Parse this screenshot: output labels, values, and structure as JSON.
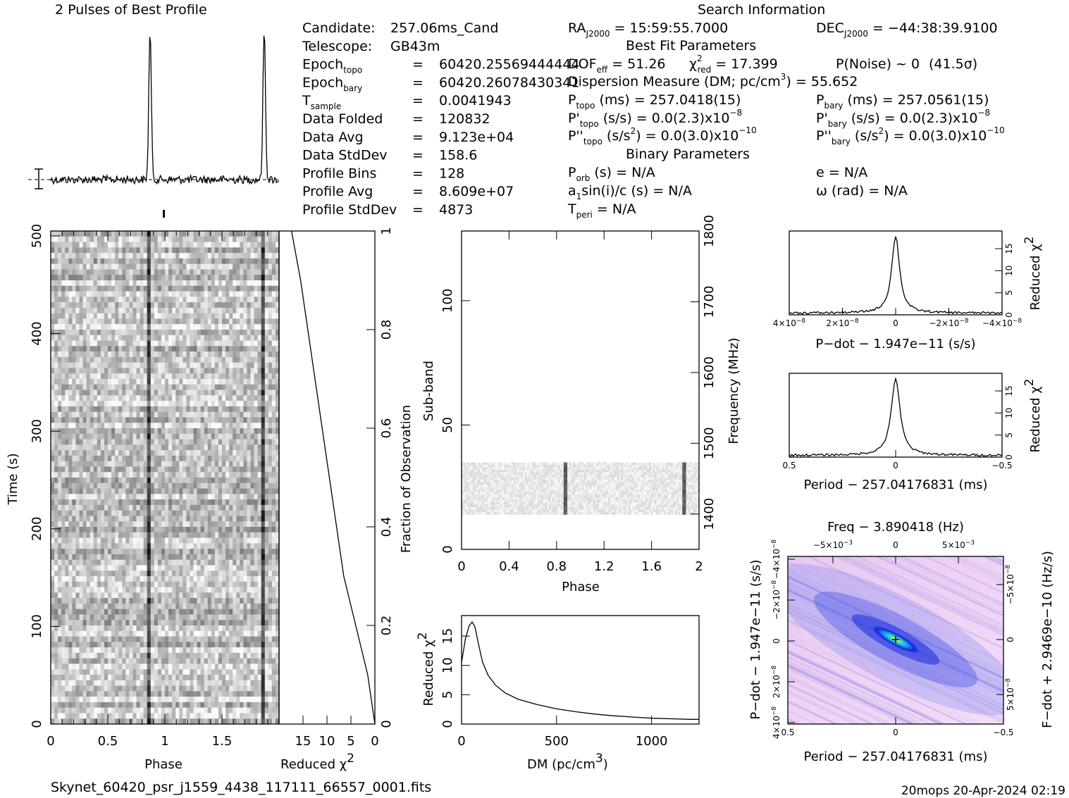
{
  "header": {
    "profile_title": "2 Pulses of Best Profile",
    "search_title": "Search Information",
    "best_fit_title": "Best Fit Parameters",
    "binary_title": "Binary Parameters",
    "footer_file": "Skynet_60420_psr_j1559_4438_117111_66557_0001.fits",
    "footer_stamp": "20mops 20-Apr-2024 02:19"
  },
  "candidate_info": [
    {
      "label": "Candidate:",
      "value": "257.06ms_Cand"
    },
    {
      "label": "Telescope:",
      "value": "GB43m"
    },
    {
      "label": "Epoch",
      "sub": "topo",
      "eq": "=",
      "value": "60420.25569444444"
    },
    {
      "label": "Epoch",
      "sub": "bary",
      "eq": "=",
      "value": "60420.26078430341"
    },
    {
      "label": "T",
      "sub": "sample",
      "eq": "=",
      "value": "0.0041943"
    },
    {
      "label": "Data Folded",
      "eq": "=",
      "value": "120832"
    },
    {
      "label": "Data Avg",
      "eq": "=",
      "value": "9.123e+04"
    },
    {
      "label": "Data StdDev",
      "eq": "=",
      "value": "158.6"
    },
    {
      "label": "Profile Bins",
      "eq": "=",
      "value": "128"
    },
    {
      "label": "Profile Avg",
      "eq": "=",
      "value": "8.609e+07"
    },
    {
      "label": "Profile StdDev",
      "eq": "=",
      "value": "4873"
    }
  ],
  "search_info": {
    "ra": "RA",
    "ra_sub": "J2000",
    "ra_value": "= 15:59:55.7000",
    "dec": "DEC",
    "dec_sub": "J2000",
    "dec_value": "= −44:38:39.9100",
    "dof": "DOF",
    "dof_sub": "eff",
    "dof_value": "= 51.26",
    "chi": "χ",
    "chi_sup": "2",
    "chi_sub": "red",
    "chi_value": "= 17.399",
    "pnoise": "P(Noise) ~ 0",
    "sigma": "(41.5σ)",
    "dm_text": "Dispersion Measure (DM; pc/cm",
    "dm_sup": "3",
    "dm_value": ") = 55.652",
    "ptopo": "P",
    "ptopo_sub": "topo",
    "ptopo_value": "(ms) =  257.0418(15)",
    "pbary": "P",
    "pbary_sub": "bary",
    "pbary_value": "(ms) =  257.0561(15)",
    "pdtopo": "P'",
    "pdtopo_sub": "topo",
    "pdtopo_value": "(s/s) = 0.0(2.3)x10",
    "pdtopo_exp": "−8",
    "pdbary": "P'",
    "pdbary_sub": "bary",
    "pdbary_value": "(s/s) = 0.0(2.3)x10",
    "pdbary_exp": "−8",
    "pddtopo": "P''",
    "pddtopo_sub": "topo",
    "pddtopo_value": "(s/s",
    "pddtopo_value2": ") = 0.0(3.0)x10",
    "pddtopo_exp": "−10",
    "pddbary": "P''",
    "pddbary_sub": "bary",
    "pddbary_value": "(s/s",
    "pddbary_value2": ") = 0.0(3.0)x10",
    "pddbary_exp": "−10",
    "pow2": "2",
    "porb": "P",
    "porb_sub": "orb",
    "porb_value": "(s) = N/A",
    "e_value": "e = N/A",
    "a1": "a",
    "a1_sub": "1",
    "a1_value": "sin(i)/c (s) = N/A",
    "omega": "ω (rad) = N/A",
    "tperi": "T",
    "tperi_sub": "peri",
    "tperi_value": "= N/A"
  },
  "chart_data": [
    {
      "type": "line",
      "name": "pulse_profile",
      "title": "2 Pulses of Best Profile",
      "x_range": [
        0,
        2
      ],
      "pulse_phases": [
        0.87,
        1.87
      ],
      "baseline": 0.06,
      "peak": 1.0
    },
    {
      "type": "heatmap",
      "name": "time_vs_phase",
      "xlabel": "Phase",
      "ylabel": "Time (s)",
      "xlim": [
        0,
        2
      ],
      "ylim": [
        0,
        505
      ],
      "x_ticks": [
        "0",
        "0.5",
        "1",
        "1.5"
      ],
      "y_ticks": [
        "0",
        "100",
        "200",
        "300",
        "400",
        "500"
      ],
      "pulse_phases": [
        0.87,
        1.87
      ]
    },
    {
      "type": "line",
      "name": "cumulative_chi2",
      "xlabel": "Reduced χ",
      "xlabel_sup": "2",
      "ylabel": "Fraction of Observation",
      "x_ticks": [
        "15",
        "10",
        "5",
        "0"
      ],
      "y_ticks": [
        "0",
        "0.2",
        "0.4",
        "0.6",
        "0.8",
        "1"
      ],
      "x": [
        0,
        1.5,
        4,
        6.5,
        8,
        9.5,
        11,
        12.5,
        14,
        15.5,
        17.4
      ],
      "y": [
        0.0,
        0.1,
        0.2,
        0.3,
        0.4,
        0.5,
        0.6,
        0.7,
        0.8,
        0.9,
        1.0
      ]
    },
    {
      "type": "heatmap",
      "name": "subband_vs_phase",
      "xlabel": "Phase",
      "ylabel": "Sub-band",
      "ylabel2": "Frequency (MHz)",
      "xlim": [
        0,
        2
      ],
      "ylim": [
        0,
        128
      ],
      "x_ticks": [
        "0",
        "0.4",
        "0.8",
        "1.2",
        "1.6",
        "2"
      ],
      "y_ticks": [
        "0",
        "50",
        "100"
      ],
      "y2_ticks": [
        "1400",
        "1500",
        "1600",
        "1700",
        "1800"
      ],
      "active_subbands": [
        14,
        35
      ],
      "pulse_phases": [
        0.87,
        1.87
      ]
    },
    {
      "type": "line",
      "name": "dm_curve",
      "xlabel": "DM (pc/cm",
      "xlabel_sup": "3",
      "xlabel_end": ")",
      "ylabel": "Reduced χ",
      "ylabel_sup": "2",
      "x_ticks": [
        "0",
        "500",
        "1000"
      ],
      "y_ticks": [
        "0",
        "5",
        "10",
        "15"
      ],
      "x": [
        0,
        20,
        40,
        55.652,
        70,
        90,
        110,
        140,
        180,
        230,
        300,
        400,
        500,
        600,
        700,
        800,
        900,
        1000,
        1100,
        1200,
        1250
      ],
      "y": [
        10.5,
        14.5,
        16.8,
        17.4,
        16.6,
        13.5,
        10.6,
        8.3,
        6.6,
        5.3,
        4.2,
        3.3,
        2.6,
        2.1,
        1.7,
        1.4,
        1.2,
        1.0,
        0.9,
        0.8,
        0.8
      ]
    },
    {
      "type": "line",
      "name": "pdot_curve",
      "xlabel": "P−dot − 1.947e−11 (s/s)",
      "ylabel": "Reduced χ",
      "ylabel_sup": "2",
      "x_ticks": [
        "4×10",
        "2×10",
        "0",
        "−2×10",
        "−4×10"
      ],
      "x_tick_exp": "−8",
      "y_ticks": [
        "0",
        "5",
        "10",
        "15"
      ],
      "peak": 17.4
    },
    {
      "type": "line",
      "name": "period_curve",
      "xlabel": "Period − 257.04176831 (ms)",
      "ylabel": "Reduced χ",
      "ylabel_sup": "2",
      "x_ticks": [
        "0.5",
        "0",
        "−0.5"
      ],
      "y_ticks": [
        "0",
        "5",
        "10",
        "15"
      ],
      "peak": 17.4
    },
    {
      "type": "heatmap",
      "name": "period_pdot_plane",
      "title": "Freq − 3.890418 (Hz)",
      "xlabel": "Period − 257.04176831 (ms)",
      "ylabel": "P−dot − 1.947e−11 (s/s)",
      "ylabel2": "F−dot + 2.9469e−10 (Hz/s)",
      "x_ticks": [
        "0.5",
        "0",
        "−0.5"
      ],
      "top_ticks": [
        "−5×10",
        "0",
        "5×10"
      ],
      "top_tick_exp": "−3",
      "left_ticks": [
        "4×10",
        "2×10",
        "0",
        "−2×10",
        "−4×10"
      ],
      "left_tick_exp": "−8",
      "right_ticks": [
        "−5×10",
        "0",
        "5×10"
      ],
      "right_tick_exp": "−8"
    }
  ]
}
